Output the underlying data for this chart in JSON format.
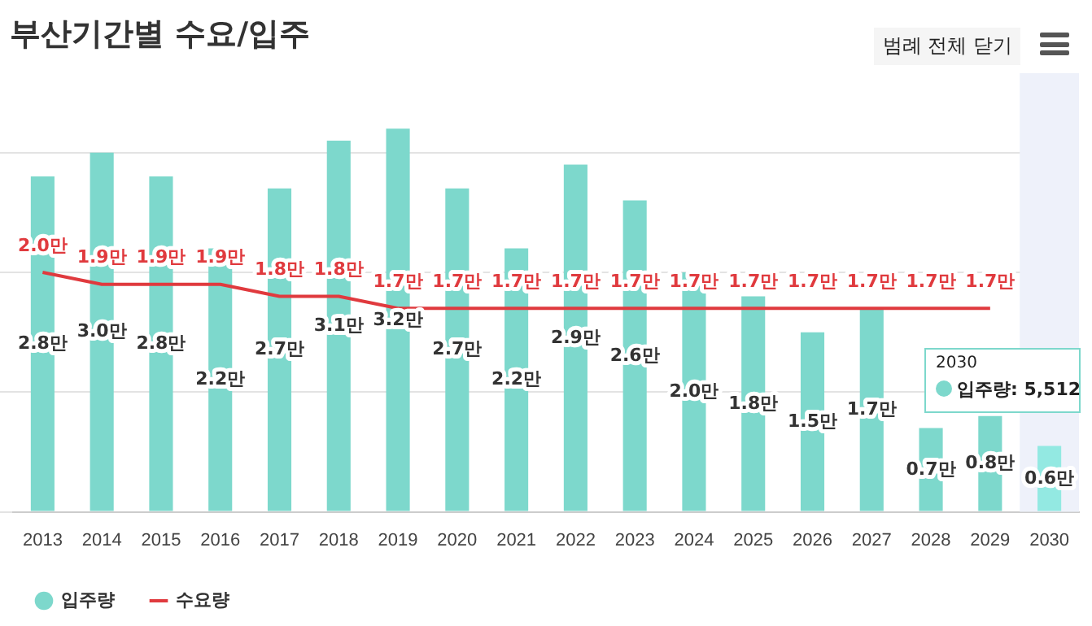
{
  "chart_data": {
    "type": "bar",
    "title": "부산기간별 수요/입주",
    "categories": [
      "2013",
      "2014",
      "2015",
      "2016",
      "2017",
      "2018",
      "2019",
      "2020",
      "2021",
      "2022",
      "2023",
      "2024",
      "2025",
      "2026",
      "2027",
      "2028",
      "2029",
      "2030"
    ],
    "series": [
      {
        "name": "입주량",
        "color": "#7dd8cc",
        "colors": [
          "#7dd8cc",
          "#7dd8cc",
          "#7dd8cc",
          "#7dd8cc",
          "#7dd8cc",
          "#7dd8cc",
          "#7dd8cc",
          "#7dd8cc",
          "#7dd8cc",
          "#7dd8cc",
          "#7dd8cc",
          "#7dd8cc",
          "#7dd8cc",
          "#7dd8cc",
          "#7dd8cc",
          "#7dd8cc",
          "#7dd8cc",
          "#93e9e2"
        ],
        "values": [
          2.8,
          3.0,
          2.8,
          2.2,
          2.7,
          3.1,
          3.2,
          2.7,
          2.2,
          2.9,
          2.6,
          2.0,
          1.8,
          1.5,
          1.7,
          0.7,
          0.8,
          0.5512
        ],
        "value_labels": [
          "2.8만",
          "3.0만",
          "2.8만",
          "2.2만",
          "2.7만",
          "3.1만",
          "3.2만",
          "2.7만",
          "2.2만",
          "2.9만",
          "2.6만",
          "2.0만",
          "1.8만",
          "1.5만",
          "1.7만",
          "0.7만",
          "0.8만",
          "0.6만"
        ]
      },
      {
        "name": "수요량",
        "type": "line",
        "color": "#e03a3e",
        "values": [
          2.0,
          1.9,
          1.9,
          1.9,
          1.8,
          1.8,
          1.7,
          1.7,
          1.7,
          1.7,
          1.7,
          1.7,
          1.7,
          1.7,
          1.7,
          1.7,
          1.7,
          null
        ],
        "value_labels": [
          "2.0만",
          "1.9만",
          "1.9만",
          "1.9만",
          "1.8만",
          "1.8만",
          "1.7만",
          "1.7만",
          "1.7만",
          "1.7만",
          "1.7만",
          "1.7만",
          "1.7만",
          "1.7만",
          "1.7만",
          "1.7만",
          "1.7만",
          null
        ]
      }
    ],
    "yticks": [
      {
        "value": 0,
        "label": null
      },
      {
        "value": 1,
        "label": null
      },
      {
        "value": 2,
        "label": null
      },
      {
        "value": 3,
        "label": null
      }
    ],
    "tick_labels": "x",
    "grid": "y",
    "legend": "bottom left",
    "marker": "none",
    "line_style": "solid",
    "bands": [
      {
        "axis": "x",
        "from": "2030",
        "to": "2030",
        "color": "#eef1fa"
      }
    ],
    "annotations": [
      "범례 전체 닫기",
      "2030",
      "입주량: 5,512"
    ]
  }
}
